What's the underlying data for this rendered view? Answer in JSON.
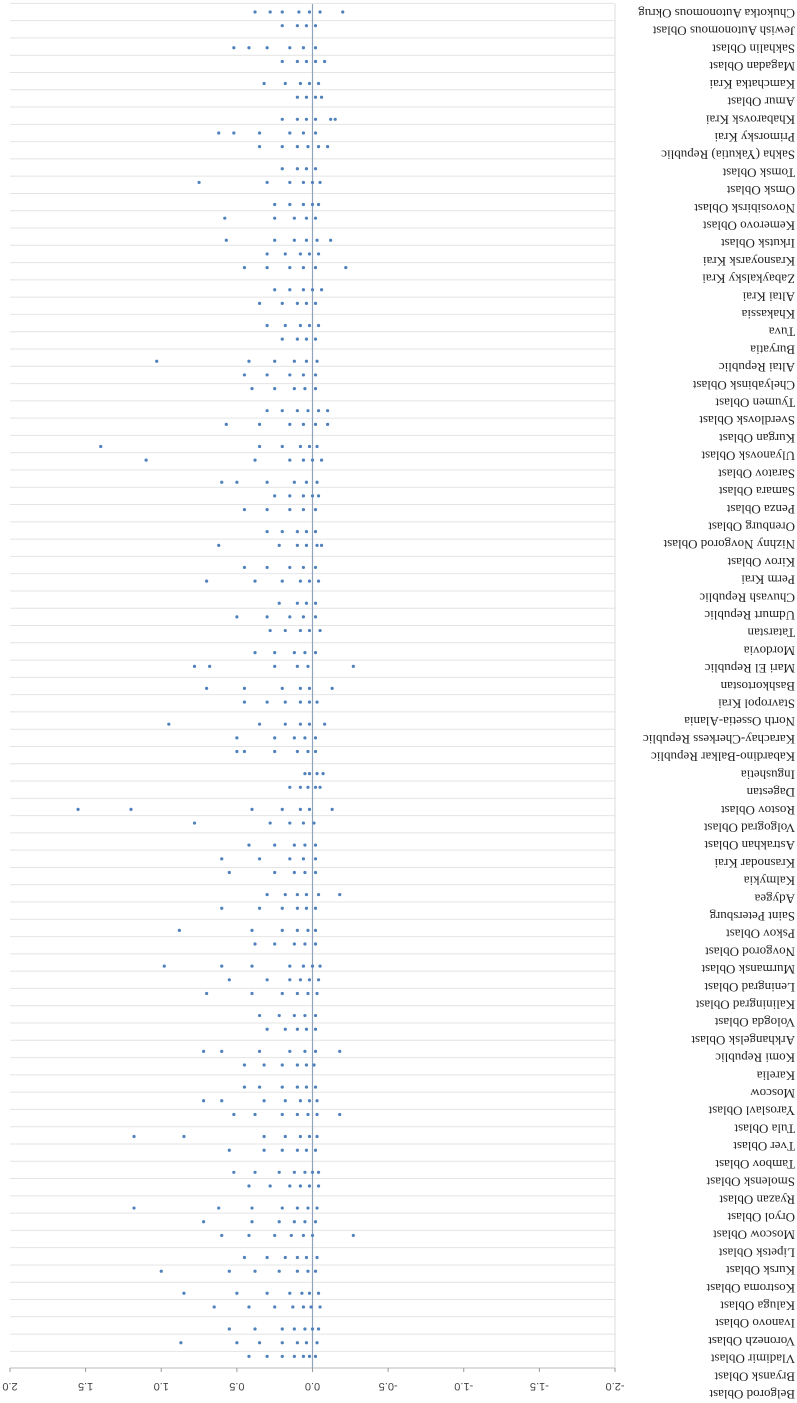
{
  "chart_data": {
    "type": "strip",
    "color": "#4f81bd",
    "xlim": [
      2,
      -2
    ],
    "xticks": [
      {
        "value": 2,
        "label": "2.0"
      },
      1.5,
      {
        "value": 1,
        "label": "1.0"
      },
      0.5,
      {
        "value": 0,
        "label": "0.0"
      },
      -0.5,
      {
        "value": -1,
        "label": "-1.0"
      },
      -1.5,
      {
        "value": -2,
        "label": "-2.0"
      }
    ],
    "categories": [
      "Belgorod Oblast",
      "Bryansk Oblast",
      "Vladimir Oblast",
      "Voronezh Oblast",
      "Ivanovo Oblast",
      "Kaluga Oblast",
      "Kostroma Oblast",
      "Kursk Oblast",
      "Lipetsk Oblast",
      "Moscow Oblast",
      "Oryol Oblast",
      "Ryazan Oblast",
      "Smolensk Oblast",
      "Tambov Oblast",
      "Tver Oblast",
      "Tula Oblast",
      "Yaroslavl Oblast",
      "Moscow",
      "Karelia",
      "Komi Republic",
      "Arkhangelsk Oblast",
      "Vologda Oblast",
      "Kaliningrad Oblast",
      "Leningrad Oblast",
      "Murmansk Oblast",
      "Novgorod Oblast",
      "Pskov Oblast",
      "Saint Petersburg",
      "Adygea",
      "Kalmykia",
      "Krasnodar Krai",
      "Astrakhan Oblast",
      "Volgograd Oblast",
      "Rostov Oblast",
      "Dagestan",
      "Ingushetia",
      "Kabardino-Balkar Republic",
      "Karachay-Cherkess Republic",
      "North Ossetia-Alania",
      "Stavropol Krai",
      "Bashkortostan",
      "Mari El Republic",
      "Mordovia",
      "Tatarstan",
      "Udmurt Republic",
      "Chuvash Republic",
      "Perm Krai",
      "Kirov Oblast",
      "Nizhny Novgorod Oblast",
      "Orenburg Oblast",
      "Penza Oblast",
      "Samara Oblast",
      "Saratov Oblast",
      "Ulyanovsk Oblast",
      "Kurgan Oblast",
      "Sverdlovsk Oblast",
      "Tyumen Oblast",
      "Chelyabinsk Oblast",
      "Altai Republic",
      "Buryatia",
      "Tuva",
      "Khakassia",
      "Altai Krai",
      "Zabaykalsky Krai",
      "Krasnoyarsk Krai",
      "Irkutsk Oblast",
      "Kemerovo Oblast",
      "Novosibirsk Oblast",
      "Omsk Oblast",
      "Tomsk Oblast",
      "Sakha (Yakutia) Republic",
      "Primorsky Krai",
      "Khabarovsk Krai",
      "Amur Oblast",
      "Kamchatka Krai",
      "Magadan Oblast",
      "Sakhalin Oblast",
      "Jewish Autonomous Oblast",
      "Chukotka Autonomous Okrug"
    ],
    "values": [
      [
        0.42,
        0.3,
        0.2,
        0.12,
        0.06,
        0.02,
        -0.02
      ],
      [
        0.87,
        0.5,
        0.35,
        0.2,
        0.1,
        0.04,
        -0.03
      ],
      [
        0.55,
        0.38,
        0.2,
        0.12,
        0.05,
        0.0,
        -0.04
      ],
      [
        0.65,
        0.42,
        0.25,
        0.13,
        0.06,
        0.01,
        -0.05
      ],
      [
        0.85,
        0.5,
        0.3,
        0.15,
        0.07,
        0.02,
        -0.04
      ],
      [
        1.0,
        0.55,
        0.38,
        0.22,
        0.1,
        0.03,
        -0.02
      ],
      [
        0.45,
        0.3,
        0.18,
        0.1,
        0.04,
        -0.03
      ],
      [
        0.6,
        0.42,
        0.25,
        0.14,
        0.06,
        0.0,
        -0.27
      ],
      [
        0.72,
        0.4,
        0.22,
        0.12,
        0.05,
        -0.02
      ],
      [
        1.18,
        0.62,
        0.4,
        0.2,
        0.1,
        0.03,
        -0.03
      ],
      [
        0.42,
        0.28,
        0.15,
        0.08,
        0.02,
        -0.04
      ],
      [
        0.52,
        0.38,
        0.22,
        0.12,
        0.05,
        0.0,
        -0.04
      ],
      [
        0.55,
        0.32,
        0.2,
        0.1,
        0.04,
        -0.02
      ],
      [
        1.18,
        0.85,
        0.32,
        0.18,
        0.08,
        0.02,
        -0.03
      ],
      [
        0.52,
        0.38,
        0.2,
        0.1,
        0.03,
        -0.03,
        -0.18
      ],
      [
        0.72,
        0.6,
        0.32,
        0.18,
        0.08,
        0.02,
        -0.03
      ],
      [
        0.45,
        0.35,
        0.2,
        0.1,
        0.04,
        -0.02
      ],
      [
        0.45,
        0.32,
        0.2,
        0.1,
        0.04,
        -0.01
      ],
      [
        0.72,
        0.6,
        0.35,
        0.15,
        0.05,
        -0.02,
        -0.18
      ],
      [
        0.3,
        0.18,
        0.1,
        0.04,
        -0.02
      ],
      [
        0.35,
        0.22,
        0.12,
        0.05,
        -0.02
      ],
      [
        0.7,
        0.4,
        0.2,
        0.1,
        0.03,
        -0.03
      ],
      [
        0.55,
        0.3,
        0.15,
        0.08,
        0.02,
        -0.04
      ],
      [
        0.98,
        0.6,
        0.4,
        0.15,
        0.06,
        0.0,
        -0.05
      ],
      [
        0.38,
        0.25,
        0.12,
        0.05,
        -0.02
      ],
      [
        0.88,
        0.4,
        0.2,
        0.1,
        0.03,
        -0.02
      ],
      [
        0.6,
        0.35,
        0.2,
        0.1,
        0.04,
        -0.02
      ],
      [
        0.3,
        0.18,
        0.1,
        0.04,
        -0.04,
        -0.18
      ],
      [
        0.55,
        0.25,
        0.12,
        0.05,
        -0.02
      ],
      [
        0.6,
        0.35,
        0.15,
        0.06,
        -0.02
      ],
      [
        0.42,
        0.25,
        0.12,
        0.05,
        -0.02
      ],
      [
        0.78,
        0.28,
        0.15,
        0.06,
        -0.01
      ],
      [
        1.55,
        1.2,
        0.4,
        0.2,
        0.08,
        0.02,
        -0.13
      ],
      [
        0.15,
        0.08,
        0.03,
        -0.02,
        -0.05
      ],
      [
        0.05,
        0.02,
        -0.03,
        -0.07
      ],
      [
        0.5,
        0.45,
        0.25,
        0.1,
        0.03,
        -0.02
      ],
      [
        0.5,
        0.25,
        0.12,
        0.05,
        -0.02
      ],
      [
        0.95,
        0.35,
        0.18,
        0.08,
        0.02,
        -0.08
      ],
      [
        0.45,
        0.3,
        0.18,
        0.08,
        0.02,
        -0.03
      ],
      [
        0.7,
        0.45,
        0.2,
        0.08,
        0.02,
        -0.13
      ],
      [
        0.78,
        0.68,
        0.25,
        0.1,
        0.03,
        -0.27
      ],
      [
        0.38,
        0.25,
        0.12,
        0.05,
        -0.02
      ],
      [
        0.28,
        0.18,
        0.08,
        0.02,
        -0.05
      ],
      [
        0.5,
        0.3,
        0.15,
        0.06,
        -0.02
      ],
      [
        0.22,
        0.1,
        0.04,
        -0.02
      ],
      [
        0.7,
        0.38,
        0.2,
        0.08,
        0.02,
        -0.04
      ],
      [
        0.45,
        0.3,
        0.15,
        0.06,
        -0.02
      ],
      [
        0.62,
        0.22,
        0.1,
        0.04,
        -0.03,
        -0.06
      ],
      [
        0.3,
        0.2,
        0.1,
        0.04,
        -0.02
      ],
      [
        0.45,
        0.3,
        0.15,
        0.06,
        -0.02
      ],
      [
        0.25,
        0.15,
        0.06,
        0.0,
        -0.04
      ],
      [
        0.6,
        0.5,
        0.3,
        0.12,
        0.04,
        -0.03
      ],
      [
        1.1,
        0.38,
        0.15,
        0.06,
        0.0,
        -0.06
      ],
      [
        1.4,
        0.35,
        0.2,
        0.08,
        0.02,
        -0.03
      ],
      [
        0.57,
        0.35,
        0.15,
        0.06,
        -0.02,
        -0.1
      ],
      [
        0.3,
        0.2,
        0.1,
        0.03,
        -0.04,
        -0.1
      ],
      [
        0.4,
        0.25,
        0.12,
        0.05,
        -0.02
      ],
      [
        0.45,
        0.3,
        0.15,
        0.06,
        -0.02
      ],
      [
        1.03,
        0.42,
        0.25,
        0.12,
        0.04,
        -0.03
      ],
      [
        0.2,
        0.1,
        0.04,
        -0.02
      ],
      [
        0.3,
        0.18,
        0.08,
        0.02,
        -0.04
      ],
      [
        0.35,
        0.2,
        0.1,
        0.04,
        -0.02
      ],
      [
        0.25,
        0.15,
        0.06,
        0.0,
        -0.06
      ],
      [
        0.45,
        0.3,
        0.15,
        0.06,
        -0.02,
        -0.22
      ],
      [
        0.3,
        0.18,
        0.08,
        0.02,
        -0.04
      ],
      [
        0.57,
        0.25,
        0.12,
        0.04,
        -0.03,
        -0.12
      ],
      [
        0.58,
        0.25,
        0.12,
        0.04,
        -0.02
      ],
      [
        0.25,
        0.15,
        0.06,
        0.0,
        -0.04
      ],
      [
        0.75,
        0.3,
        0.15,
        0.06,
        0.0,
        -0.05
      ],
      [
        0.2,
        0.1,
        0.04,
        -0.02
      ],
      [
        0.35,
        0.2,
        0.1,
        0.03,
        -0.04,
        -0.1
      ],
      [
        0.62,
        0.52,
        0.35,
        0.15,
        0.06,
        -0.02
      ],
      [
        0.2,
        0.1,
        0.04,
        -0.02,
        -0.12,
        -0.15
      ],
      [
        0.1,
        0.04,
        -0.02,
        -0.06
      ],
      [
        0.32,
        0.18,
        0.08,
        0.02,
        -0.04
      ],
      [
        0.2,
        0.1,
        0.04,
        -0.02,
        -0.08
      ],
      [
        0.52,
        0.42,
        0.3,
        0.15,
        0.06,
        -0.02
      ],
      [
        0.2,
        0.1,
        0.04,
        -0.02
      ],
      [
        0.38,
        0.28,
        0.2,
        0.09,
        0.02,
        -0.05,
        -0.2
      ]
    ]
  }
}
